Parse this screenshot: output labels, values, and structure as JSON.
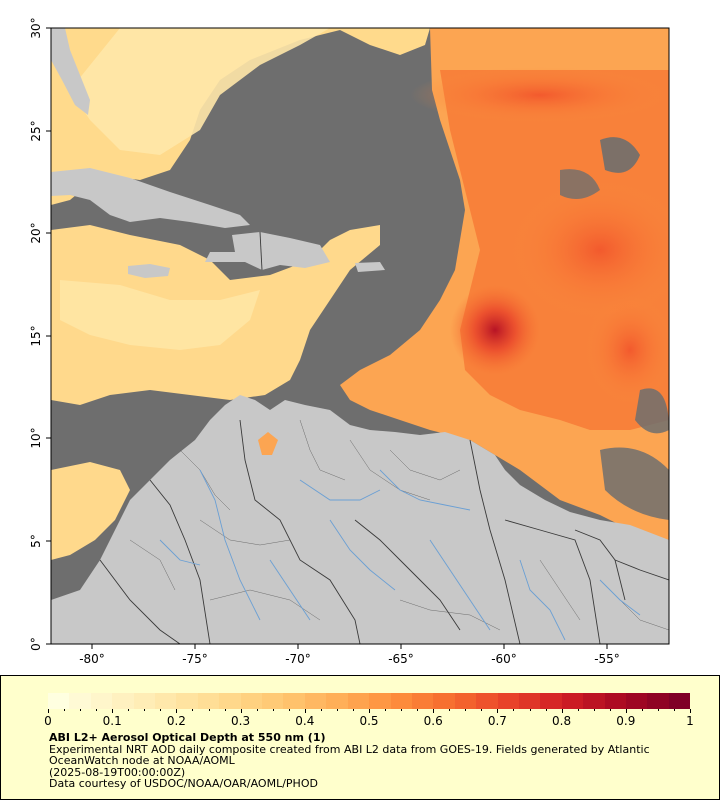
{
  "map": {
    "lat_ticks": [
      "0°",
      "5°",
      "10°",
      "15°",
      "20°",
      "25°",
      "30°"
    ],
    "lon_ticks": [
      "-80°",
      "-75°",
      "-70°",
      "-65°",
      "-60°",
      "-55°"
    ],
    "colors": {
      "ocean_nodata": "#6e6e6e",
      "land": "#c8c8c8",
      "border": "#3a3a3a",
      "river": "#6a9fd4",
      "frame": "#000000"
    }
  },
  "legend": {
    "scale_labels": [
      "0",
      "0.1",
      "0.2",
      "0.3",
      "0.4",
      "0.5",
      "0.6",
      "0.7",
      "0.8",
      "0.9",
      "1"
    ],
    "scale_colors": [
      "#ffffe0",
      "#fff3c4",
      "#ffe7a8",
      "#ffd98c",
      "#ffc670",
      "#ffad56",
      "#fd8d3c",
      "#f66a2e",
      "#e8412a",
      "#cf1d24",
      "#a80822",
      "#800026"
    ],
    "title": "ABI L2+ Aerosol Optical Depth at 550 nm (1)",
    "line1": "Experimental NRT AOD daily composite created from ABI L2 data from GOES-19. Fields generated by Atlantic OceanWatch node at NOAA/AOML",
    "line2": "(2025-08-19T00:00:00Z)",
    "line3": "Data courtesy of USDOC/NOAA/OAR/AOML/PHOD"
  }
}
